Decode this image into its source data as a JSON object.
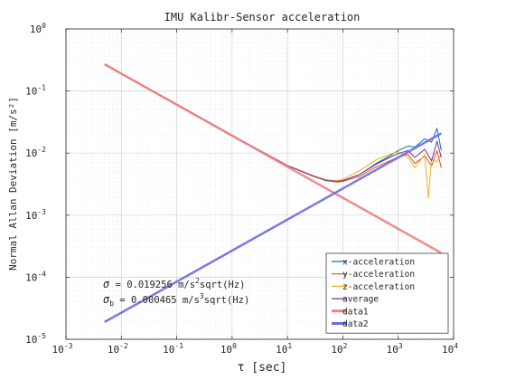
{
  "chart_data": {
    "type": "line",
    "title": "IMU Kalibr-Sensor acceleration",
    "xlabel": "τ [sec]",
    "ylabel": "Normal Allan Deviation [m/s²]",
    "xscale": "log",
    "yscale": "log",
    "xlim": [
      0.001,
      10000
    ],
    "ylim": [
      1e-05,
      1
    ],
    "x_ticks": [
      {
        "base": "10",
        "exp": "-3"
      },
      {
        "base": "10",
        "exp": "-2"
      },
      {
        "base": "10",
        "exp": "-1"
      },
      {
        "base": "10",
        "exp": "0"
      },
      {
        "base": "10",
        "exp": "1"
      },
      {
        "base": "10",
        "exp": "2"
      },
      {
        "base": "10",
        "exp": "3"
      },
      {
        "base": "10",
        "exp": "4"
      }
    ],
    "y_ticks": [
      {
        "base": "10",
        "exp": "-5"
      },
      {
        "base": "10",
        "exp": "-4"
      },
      {
        "base": "10",
        "exp": "-3"
      },
      {
        "base": "10",
        "exp": "-2"
      },
      {
        "base": "10",
        "exp": "-1"
      },
      {
        "base": "10",
        "exp": "0"
      }
    ],
    "grid": true,
    "legend_position": "bottom-right",
    "annotations": [
      {
        "sym": "σ",
        "sub": "",
        "text": " = 0.019256 m/s",
        "sup": "2",
        "tail": "sqrt(Hz)"
      },
      {
        "sym": "σ",
        "sub": "b",
        "text": " = 0.000465 m/s",
        "sup": "3",
        "tail": "sqrt(Hz)"
      }
    ],
    "series": [
      {
        "name": "x-acceleration",
        "color": "#0072BD",
        "width": 1,
        "x": [
          0.005,
          0.01,
          0.1,
          1,
          10,
          30,
          50,
          80,
          100,
          200,
          400,
          700,
          1000,
          1500,
          2000,
          3000,
          4000,
          5000,
          6000
        ],
        "y": [
          0.27,
          0.19,
          0.061,
          0.0193,
          0.0063,
          0.0043,
          0.0037,
          0.0035,
          0.0036,
          0.0045,
          0.0068,
          0.009,
          0.011,
          0.013,
          0.0125,
          0.017,
          0.015,
          0.025,
          0.011
        ]
      },
      {
        "name": "y-acceleration",
        "color": "#D95319",
        "width": 1,
        "x": [
          0.005,
          0.01,
          0.1,
          1,
          10,
          30,
          50,
          80,
          100,
          200,
          400,
          700,
          1000,
          1500,
          2000,
          3000,
          4000,
          5000,
          6000
        ],
        "y": [
          0.27,
          0.19,
          0.061,
          0.0193,
          0.0063,
          0.0042,
          0.0036,
          0.0034,
          0.0035,
          0.0042,
          0.006,
          0.0075,
          0.0085,
          0.0095,
          0.0068,
          0.009,
          0.0062,
          0.011,
          0.0058
        ]
      },
      {
        "name": "z-acceleration",
        "color": "#EDB120",
        "width": 1,
        "x": [
          0.005,
          0.01,
          0.1,
          1,
          10,
          30,
          50,
          80,
          100,
          200,
          400,
          700,
          1000,
          1500,
          2000,
          3000,
          3500,
          4000,
          5000,
          6000
        ],
        "y": [
          0.27,
          0.19,
          0.061,
          0.0193,
          0.0063,
          0.0043,
          0.0037,
          0.0036,
          0.0038,
          0.0052,
          0.0078,
          0.0095,
          0.0105,
          0.0085,
          0.0058,
          0.0095,
          0.0019,
          0.008,
          0.0072,
          0.0095
        ]
      },
      {
        "name": "average",
        "color": "#7E2F8E",
        "width": 1,
        "x": [
          0.005,
          0.01,
          0.1,
          1,
          10,
          30,
          50,
          80,
          100,
          200,
          400,
          700,
          1000,
          1500,
          2000,
          3000,
          4000,
          5000,
          6000
        ],
        "y": [
          0.27,
          0.19,
          0.061,
          0.0193,
          0.0063,
          0.0042,
          0.0036,
          0.0035,
          0.0036,
          0.0045,
          0.0066,
          0.0085,
          0.0098,
          0.011,
          0.0085,
          0.0115,
          0.0075,
          0.0155,
          0.0085
        ]
      },
      {
        "name": "data1",
        "color": "#F08080",
        "width": 2.5,
        "x": [
          0.005,
          6000
        ],
        "y": [
          0.27,
          0.000246
        ]
      },
      {
        "name": "data2",
        "color": "#6C6CE0",
        "width": 2.5,
        "x": [
          0.005,
          6000
        ],
        "y": [
          1.9e-05,
          0.0208
        ]
      }
    ]
  }
}
